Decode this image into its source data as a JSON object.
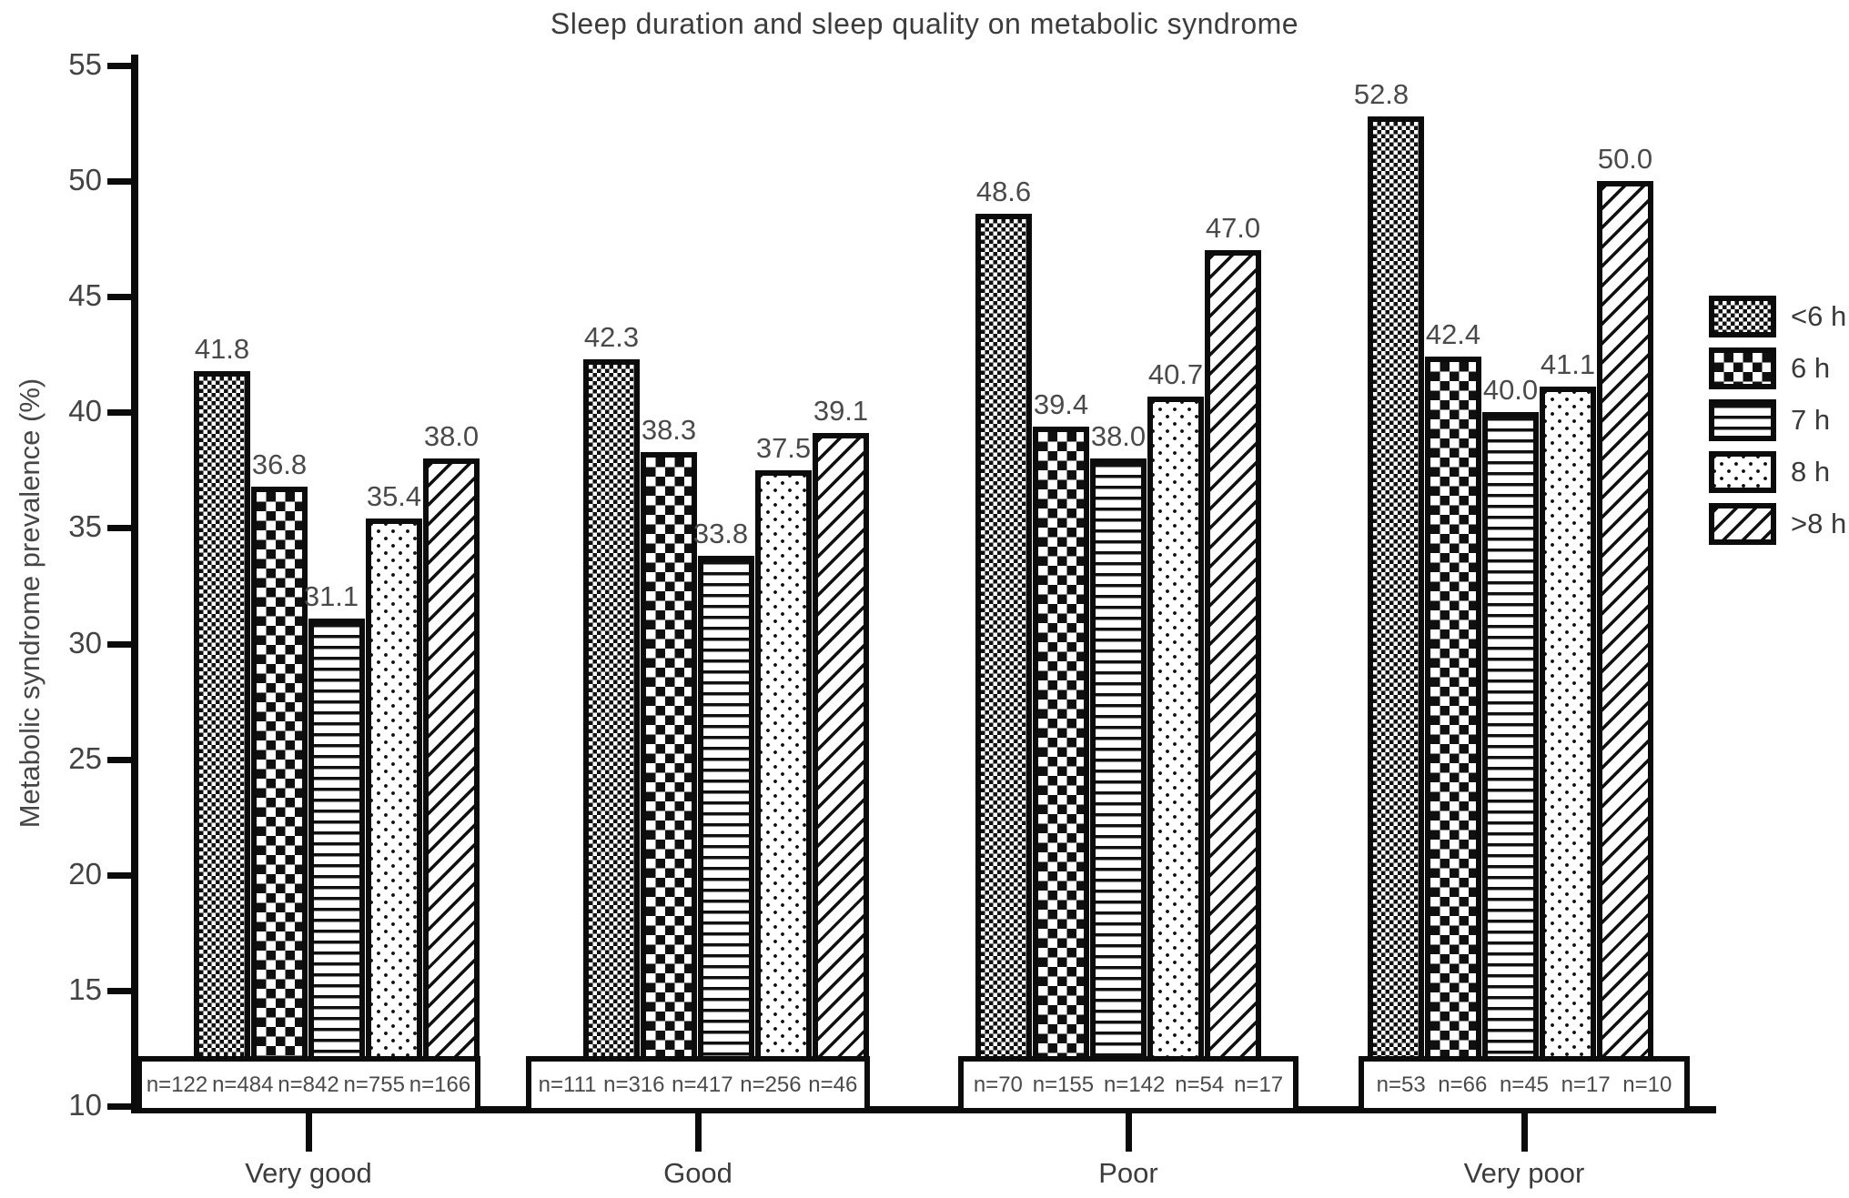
{
  "chart_data": {
    "type": "bar",
    "title": "Sleep duration and sleep quality on metabolic syndrome",
    "ylabel": "Metabolic syndrome prevalence (%)",
    "ylim": [
      10,
      55
    ],
    "ytick_step": 5,
    "ytick_labels": [
      "10",
      "15",
      "20",
      "25",
      "30",
      "35",
      "40",
      "45",
      "50",
      "55"
    ],
    "categories": [
      "Very good",
      "Good",
      "Poor",
      "Very poor"
    ],
    "grid": false,
    "legend_position": "right",
    "series": [
      {
        "name": "<6 h",
        "pattern": "fine-checkerboard",
        "values": [
          41.8,
          42.3,
          48.6,
          52.8
        ],
        "value_labels": [
          "41.8",
          "42.3",
          "48.6",
          "52.8"
        ],
        "n_labels": [
          "n=122",
          "n=111",
          "n=70",
          "n=53"
        ]
      },
      {
        "name": "6 h",
        "pattern": "checkerboard",
        "values": [
          36.8,
          38.3,
          39.4,
          42.4
        ],
        "value_labels": [
          "36.8",
          "38.3",
          "39.4",
          "42.4"
        ],
        "n_labels": [
          "n=484",
          "n=316",
          "n=155",
          "n=66"
        ]
      },
      {
        "name": "7 h",
        "pattern": "horizontal-lines",
        "values": [
          31.1,
          33.8,
          38.0,
          40.0
        ],
        "value_labels": [
          "31.1",
          "33.8",
          "38.0",
          "40.0"
        ],
        "n_labels": [
          "n=842",
          "n=417",
          "n=142",
          "n=45"
        ]
      },
      {
        "name": "8 h",
        "pattern": "dots",
        "values": [
          35.4,
          37.5,
          40.7,
          41.1
        ],
        "value_labels": [
          "35.4",
          "37.5",
          "40.7",
          "41.1"
        ],
        "n_labels": [
          "n=755",
          "n=256",
          "n=54",
          "n=17"
        ]
      },
      {
        "name": ">8 h",
        "pattern": "diagonal-stripes",
        "values": [
          38.0,
          39.1,
          47.0,
          50.0
        ],
        "value_labels": [
          "38.0",
          "39.1",
          "47.0",
          "50.0"
        ],
        "n_labels": [
          "n=166",
          "n=46",
          "n=17",
          "n=10"
        ]
      }
    ]
  }
}
